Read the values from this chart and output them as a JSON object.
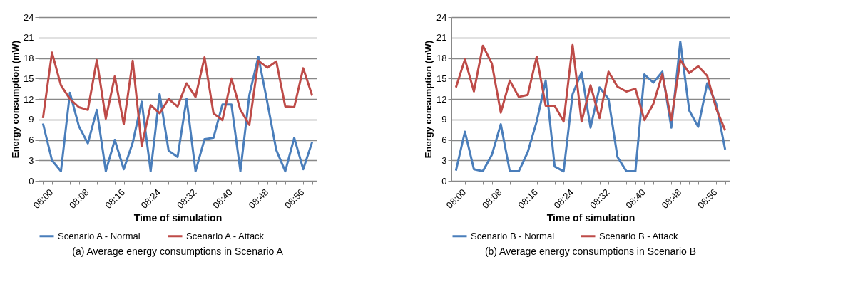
{
  "chart_data": [
    {
      "type": "line",
      "xlabel": "Time of simulation",
      "ylabel": "Energy consumption (mW)",
      "categories": [
        "08:00",
        null,
        null,
        null,
        "08:08",
        null,
        null,
        null,
        "08:16",
        null,
        null,
        null,
        "08:24",
        null,
        null,
        null,
        "08:32",
        null,
        null,
        null,
        "08:40",
        null,
        null,
        null,
        "08:48",
        null,
        null,
        null,
        "08:56",
        null,
        null
      ],
      "series": [
        {
          "name": "Scenario A - Normal",
          "color": "#4a7ebb",
          "values": [
            8.4,
            3.0,
            1.4,
            12.9,
            8.0,
            5.5,
            10.4,
            1.4,
            6.0,
            1.7,
            5.6,
            11.6,
            1.4,
            12.7,
            4.4,
            3.5,
            12.0,
            1.4,
            6.1,
            6.3,
            11.2,
            11.2,
            1.4,
            12.6,
            18.2,
            11.5,
            4.5,
            1.4,
            6.3,
            1.7,
            5.7
          ]
        },
        {
          "name": "Scenario A - Attack",
          "color": "#be4b48",
          "values": [
            9.2,
            18.8,
            14.0,
            12.0,
            10.8,
            10.4,
            17.7,
            9.1,
            15.3,
            8.3,
            17.6,
            5.1,
            11.1,
            9.9,
            12.0,
            10.9,
            14.3,
            12.3,
            18.1,
            9.9,
            8.9,
            15.0,
            10.4,
            8.2,
            17.6,
            16.6,
            17.5,
            10.9,
            10.8,
            16.5,
            12.5
          ]
        }
      ],
      "ylim": [
        0,
        24
      ],
      "yticks": [
        0,
        3,
        6,
        9,
        12,
        15,
        18,
        21,
        24
      ],
      "grid": "y",
      "legend": "bottom",
      "line_style": "solid",
      "marker": "none",
      "annotations": [
        "(a) Average energy consumptions in Scenario A"
      ]
    },
    {
      "type": "line",
      "xlabel": "Time of simulation",
      "ylabel": "Energy consumption (mW)",
      "categories": [
        "08:00",
        null,
        null,
        null,
        "08:08",
        null,
        null,
        null,
        "08:16",
        null,
        null,
        null,
        "08:24",
        null,
        null,
        null,
        "08:32",
        null,
        null,
        null,
        "08:40",
        null,
        null,
        null,
        "08:48",
        null,
        null,
        null,
        "08:56",
        null,
        null
      ],
      "series": [
        {
          "name": "Scenario B - Normal",
          "color": "#4a7ebb",
          "values": [
            1.5,
            7.2,
            1.7,
            1.4,
            3.8,
            8.3,
            1.4,
            1.4,
            4.2,
            8.7,
            14.7,
            2.1,
            1.4,
            12.7,
            15.9,
            7.8,
            13.7,
            12.0,
            3.5,
            1.4,
            1.4,
            15.6,
            14.4,
            16.0,
            7.8,
            20.4,
            10.3,
            7.9,
            14.3,
            11.3,
            4.6
          ]
        },
        {
          "name": "Scenario B - Attack",
          "color": "#be4b48",
          "values": [
            13.7,
            17.8,
            13.1,
            19.8,
            17.2,
            10.0,
            14.7,
            12.3,
            12.6,
            18.2,
            11.0,
            11.0,
            8.7,
            19.9,
            8.7,
            14.0,
            9.2,
            16.0,
            13.8,
            13.1,
            13.5,
            8.9,
            11.3,
            15.6,
            8.9,
            17.7,
            15.8,
            16.8,
            15.4,
            10.6,
            7.4
          ]
        }
      ],
      "ylim": [
        0,
        24
      ],
      "yticks": [
        0,
        3,
        6,
        9,
        12,
        15,
        18,
        21,
        24
      ],
      "grid": "y",
      "legend": "bottom",
      "line_style": "solid",
      "marker": "none",
      "annotations": [
        "(b) Average energy consumptions in Scenario B"
      ]
    }
  ]
}
